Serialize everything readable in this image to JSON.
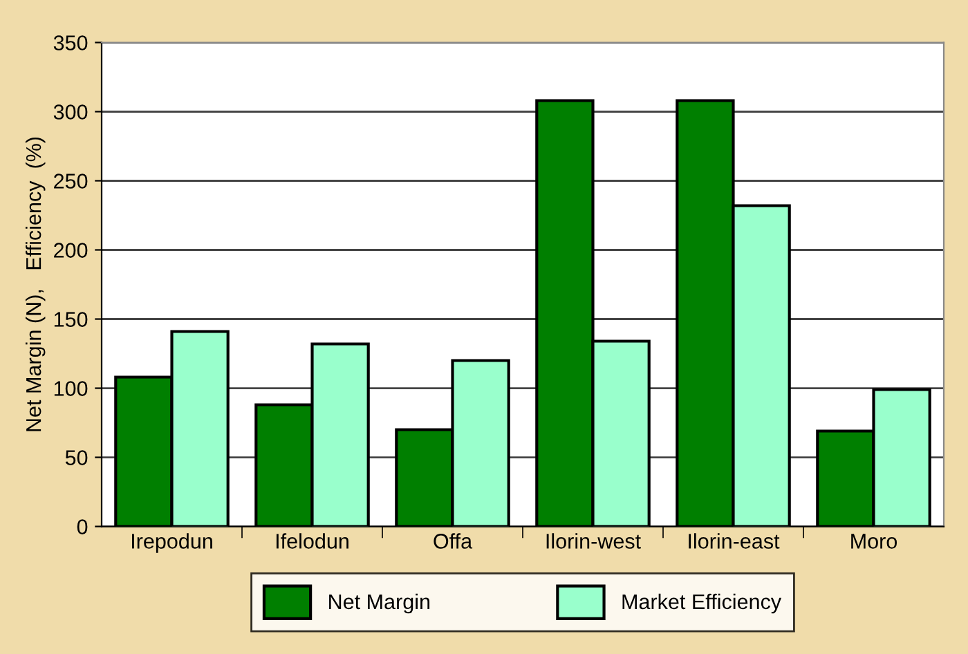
{
  "chart_data": {
    "type": "bar",
    "ylabel": "Net Margin (N),   Efficiency  (%)",
    "categories": [
      "Irepodun",
      "Ifelodun",
      "Offa",
      "Ilorin-west",
      "Ilorin-east",
      "Moro"
    ],
    "series": [
      {
        "name": "Net Margin",
        "color": "#007f00",
        "values": [
          108,
          88,
          70,
          308,
          308,
          69
        ]
      },
      {
        "name": "Market Efficiency",
        "color": "#99ffcc",
        "values": [
          141,
          132,
          120,
          134,
          232,
          99
        ]
      }
    ],
    "ylim": [
      0,
      350
    ],
    "yticks": [
      0,
      50,
      100,
      150,
      200,
      250,
      300,
      350
    ],
    "grid": "y",
    "legend": "bottom"
  }
}
